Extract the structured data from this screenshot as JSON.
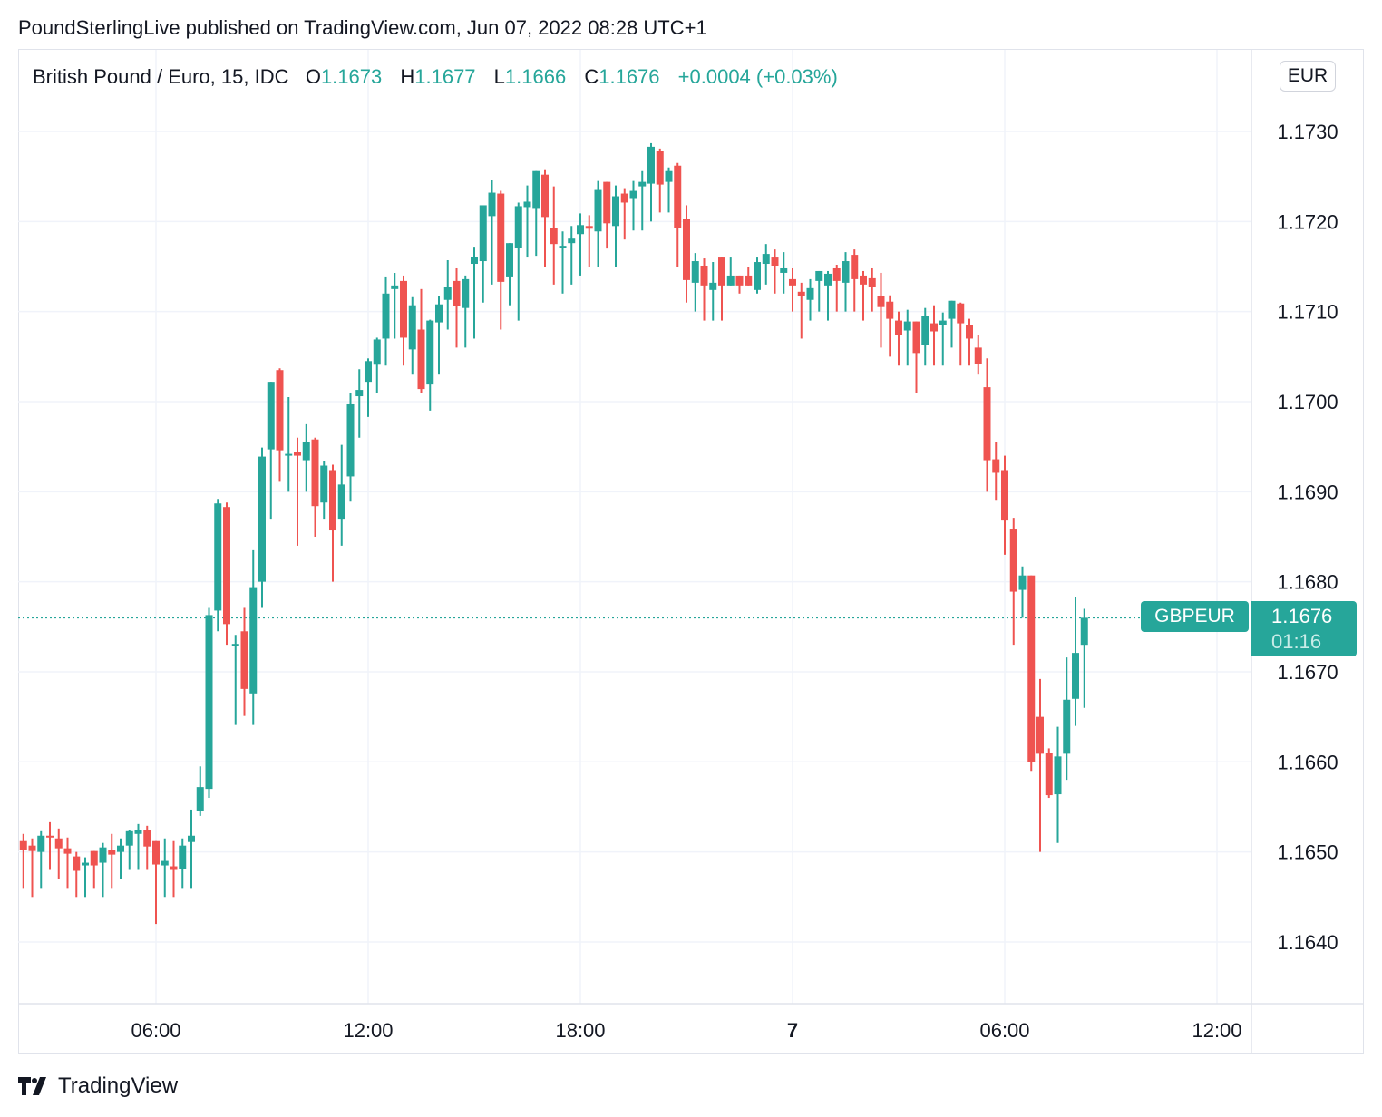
{
  "header": {
    "published": "PoundSterlingLive published on TradingView.com, Jun 07, 2022 08:28 UTC+1"
  },
  "legend": {
    "symbol": "British Pound / Euro, 15, IDC",
    "o_label": "O",
    "o": "1.1673",
    "h_label": "H",
    "h": "1.1677",
    "l_label": "L",
    "l": "1.1666",
    "c_label": "C",
    "c": "1.1676",
    "change": "+0.0004 (+0.03%)"
  },
  "currency_button": "EUR",
  "last_price": {
    "symbol": "GBPEUR",
    "price": "1.1676",
    "countdown": "01:16"
  },
  "brand": "TradingView",
  "colors": {
    "up": "#26a69a",
    "down": "#ef5350",
    "grid": "#f0f3fa",
    "axis_text": "#131722"
  },
  "chart_data": {
    "type": "candlestick",
    "symbol": "GBPEUR",
    "first_bar_time": "2022-06-06 02:15",
    "interval_minutes": 15,
    "ylim": [
      1.1633,
      1.1739
    ],
    "y_ticks": [
      "1.1730",
      "1.1720",
      "1.1710",
      "1.1700",
      "1.1690",
      "1.1680",
      "1.1670",
      "1.1660",
      "1.1650",
      "1.1640"
    ],
    "x_ticks": [
      {
        "label": "06:00",
        "time": "2022-06-06 06:00",
        "bold": false
      },
      {
        "label": "12:00",
        "time": "2022-06-06 12:00",
        "bold": false
      },
      {
        "label": "18:00",
        "time": "2022-06-06 18:00",
        "bold": false
      },
      {
        "label": "7",
        "time": "2022-06-07 00:00",
        "bold": true
      },
      {
        "label": "06:00",
        "time": "2022-06-07 06:00",
        "bold": false
      },
      {
        "label": "12:00",
        "time": "2022-06-07 12:00",
        "bold": false
      }
    ],
    "grid": true,
    "last_price_line": 1.1676,
    "ohlc_fields": [
      "open",
      "high",
      "low",
      "close"
    ],
    "candles": [
      [
        1.16512,
        1.1652,
        1.1646,
        1.16502
      ],
      [
        1.16507,
        1.16515,
        1.1645,
        1.16501
      ],
      [
        1.165,
        1.16523,
        1.1646,
        1.16518
      ],
      [
        1.16518,
        1.16533,
        1.1648,
        1.16516
      ],
      [
        1.16515,
        1.16526,
        1.1647,
        1.16504
      ],
      [
        1.16504,
        1.16516,
        1.1646,
        1.16498
      ],
      [
        1.16495,
        1.165,
        1.1645,
        1.16479
      ],
      [
        1.16485,
        1.16494,
        1.1645,
        1.16488
      ],
      [
        1.16501,
        1.16501,
        1.1646,
        1.16485
      ],
      [
        1.16488,
        1.1651,
        1.1645,
        1.16505
      ],
      [
        1.16502,
        1.1652,
        1.1646,
        1.16497
      ],
      [
        1.165,
        1.16515,
        1.1647,
        1.16507
      ],
      [
        1.16507,
        1.16524,
        1.1648,
        1.16523
      ],
      [
        1.1652,
        1.16531,
        1.1648,
        1.16524
      ],
      [
        1.16524,
        1.16529,
        1.1648,
        1.16506
      ],
      [
        1.16512,
        1.16512,
        1.1642,
        1.16486
      ],
      [
        1.16485,
        1.16515,
        1.1645,
        1.1649
      ],
      [
        1.16484,
        1.16512,
        1.1645,
        1.1648
      ],
      [
        1.16481,
        1.16515,
        1.1646,
        1.16507
      ],
      [
        1.16511,
        1.16547,
        1.1646,
        1.16518
      ],
      [
        1.16545,
        1.16595,
        1.1654,
        1.16572
      ],
      [
        1.1657,
        1.16771,
        1.1656,
        1.16763
      ],
      [
        1.16768,
        1.16892,
        1.16745,
        1.16887
      ],
      [
        1.16883,
        1.16888,
        1.1673,
        1.16753
      ],
      [
        1.1673,
        1.16741,
        1.16641,
        1.16731
      ],
      [
        1.16745,
        1.16771,
        1.16651,
        1.16681
      ],
      [
        1.16676,
        1.16835,
        1.16641,
        1.16794
      ],
      [
        1.168,
        1.16949,
        1.16771,
        1.16939
      ],
      [
        1.16947,
        1.17022,
        1.1687,
        1.17022
      ],
      [
        1.17035,
        1.17037,
        1.16911,
        1.16946
      ],
      [
        1.1694,
        1.17005,
        1.169,
        1.16942
      ],
      [
        1.16944,
        1.1696,
        1.1684,
        1.1694
      ],
      [
        1.16935,
        1.16975,
        1.169,
        1.16955
      ],
      [
        1.16958,
        1.1696,
        1.1685,
        1.16884
      ],
      [
        1.16888,
        1.16934,
        1.1687,
        1.16929
      ],
      [
        1.16924,
        1.1693,
        1.168,
        1.16857
      ],
      [
        1.1687,
        1.16952,
        1.1684,
        1.16908
      ],
      [
        1.16917,
        1.1701,
        1.16889,
        1.16997
      ],
      [
        1.17006,
        1.17036,
        1.1696,
        1.17013
      ],
      [
        1.17022,
        1.17048,
        1.16983,
        1.17045
      ],
      [
        1.17041,
        1.17071,
        1.1701,
        1.17069
      ],
      [
        1.1707,
        1.17139,
        1.1704,
        1.1712
      ],
      [
        1.17125,
        1.17143,
        1.1707,
        1.17129
      ],
      [
        1.17134,
        1.1714,
        1.1704,
        1.17071
      ],
      [
        1.17058,
        1.17116,
        1.1703,
        1.17107
      ],
      [
        1.1708,
        1.17125,
        1.1701,
        1.17014
      ],
      [
        1.17019,
        1.17091,
        1.1699,
        1.1709
      ],
      [
        1.17088,
        1.17117,
        1.1703,
        1.17108
      ],
      [
        1.17113,
        1.17157,
        1.1708,
        1.17127
      ],
      [
        1.17134,
        1.17148,
        1.1706,
        1.17106
      ],
      [
        1.17104,
        1.1714,
        1.1706,
        1.17136
      ],
      [
        1.17153,
        1.17172,
        1.1707,
        1.17161
      ],
      [
        1.17156,
        1.17218,
        1.1711,
        1.17218
      ],
      [
        1.17206,
        1.17246,
        1.1713,
        1.17232
      ],
      [
        1.17231,
        1.17234,
        1.1708,
        1.17133
      ],
      [
        1.17139,
        1.17176,
        1.17107,
        1.17176
      ],
      [
        1.17171,
        1.17221,
        1.1709,
        1.17217
      ],
      [
        1.17216,
        1.1724,
        1.1716,
        1.17222
      ],
      [
        1.17215,
        1.17256,
        1.17162,
        1.17256
      ],
      [
        1.17252,
        1.17258,
        1.1715,
        1.17205
      ],
      [
        1.17193,
        1.17239,
        1.1713,
        1.17175
      ],
      [
        1.17172,
        1.17189,
        1.1712,
        1.17173
      ],
      [
        1.17176,
        1.17195,
        1.1713,
        1.17181
      ],
      [
        1.17186,
        1.17209,
        1.1714,
        1.17196
      ],
      [
        1.17195,
        1.17207,
        1.1715,
        1.17192
      ],
      [
        1.17189,
        1.17245,
        1.1715,
        1.17235
      ],
      [
        1.17244,
        1.17244,
        1.1717,
        1.17198
      ],
      [
        1.17195,
        1.1724,
        1.1715,
        1.17228
      ],
      [
        1.17231,
        1.17237,
        1.1718,
        1.17221
      ],
      [
        1.17226,
        1.17245,
        1.1719,
        1.17234
      ],
      [
        1.17239,
        1.17256,
        1.1719,
        1.17244
      ],
      [
        1.17242,
        1.17287,
        1.172,
        1.17283
      ],
      [
        1.17278,
        1.17281,
        1.1721,
        1.17241
      ],
      [
        1.17244,
        1.1726,
        1.1721,
        1.17256
      ],
      [
        1.17262,
        1.17265,
        1.1715,
        1.17193
      ],
      [
        1.17203,
        1.17218,
        1.1711,
        1.17135
      ],
      [
        1.17132,
        1.17165,
        1.171,
        1.17156
      ],
      [
        1.17151,
        1.17159,
        1.1709,
        1.17129
      ],
      [
        1.17124,
        1.17155,
        1.1709,
        1.17132
      ],
      [
        1.1716,
        1.1716,
        1.1709,
        1.17129
      ],
      [
        1.17129,
        1.1716,
        1.17129,
        1.1714
      ],
      [
        1.1714,
        1.1714,
        1.1712,
        1.17129
      ],
      [
        1.1714,
        1.1715,
        1.17129,
        1.17129
      ],
      [
        1.17124,
        1.1716,
        1.1712,
        1.17155
      ],
      [
        1.17153,
        1.17175,
        1.1713,
        1.17164
      ],
      [
        1.1716,
        1.17169,
        1.1712,
        1.17151
      ],
      [
        1.17143,
        1.17166,
        1.1712,
        1.17148
      ],
      [
        1.17136,
        1.17148,
        1.171,
        1.17129
      ],
      [
        1.17122,
        1.17132,
        1.1707,
        1.17117
      ],
      [
        1.17113,
        1.17136,
        1.1709,
        1.17126
      ],
      [
        1.17134,
        1.17145,
        1.171,
        1.17145
      ],
      [
        1.17129,
        1.17145,
        1.1709,
        1.17142
      ],
      [
        1.17148,
        1.17152,
        1.171,
        1.17134
      ],
      [
        1.17132,
        1.17166,
        1.171,
        1.17156
      ],
      [
        1.17163,
        1.17169,
        1.171,
        1.17136
      ],
      [
        1.1714,
        1.17145,
        1.1709,
        1.1713
      ],
      [
        1.17137,
        1.17148,
        1.171,
        1.17127
      ],
      [
        1.17117,
        1.17143,
        1.1706,
        1.17105
      ],
      [
        1.17111,
        1.17118,
        1.1705,
        1.17092
      ],
      [
        1.1709,
        1.171,
        1.1704,
        1.17074
      ],
      [
        1.17079,
        1.17102,
        1.1704,
        1.17089
      ],
      [
        1.17089,
        1.17089,
        1.1701,
        1.17054
      ],
      [
        1.17063,
        1.17104,
        1.1704,
        1.17095
      ],
      [
        1.17087,
        1.17107,
        1.1704,
        1.17078
      ],
      [
        1.17085,
        1.17099,
        1.1704,
        1.1709
      ],
      [
        1.17092,
        1.17112,
        1.1706,
        1.17112
      ],
      [
        1.17109,
        1.1711,
        1.1704,
        1.17087
      ],
      [
        1.17085,
        1.17092,
        1.1704,
        1.1707
      ],
      [
        1.1706,
        1.17074,
        1.1703,
        1.17042
      ],
      [
        1.17016,
        1.17048,
        1.169,
        1.16935
      ],
      [
        1.16936,
        1.16955,
        1.1689,
        1.16921
      ],
      [
        1.16924,
        1.1694,
        1.1683,
        1.16868
      ],
      [
        1.16858,
        1.16871,
        1.1673,
        1.16789
      ],
      [
        1.16791,
        1.16817,
        1.1676,
        1.16807
      ],
      [
        1.16807,
        1.16807,
        1.1659,
        1.166
      ],
      [
        1.1665,
        1.16692,
        1.165,
        1.16609
      ],
      [
        1.1661,
        1.16615,
        1.1656,
        1.16563
      ],
      [
        1.16564,
        1.16639,
        1.1651,
        1.16606
      ],
      [
        1.16609,
        1.16716,
        1.1658,
        1.16669
      ],
      [
        1.1667,
        1.16783,
        1.1664,
        1.16721
      ],
      [
        1.1673,
        1.1677,
        1.1666,
        1.1676
      ]
    ]
  }
}
